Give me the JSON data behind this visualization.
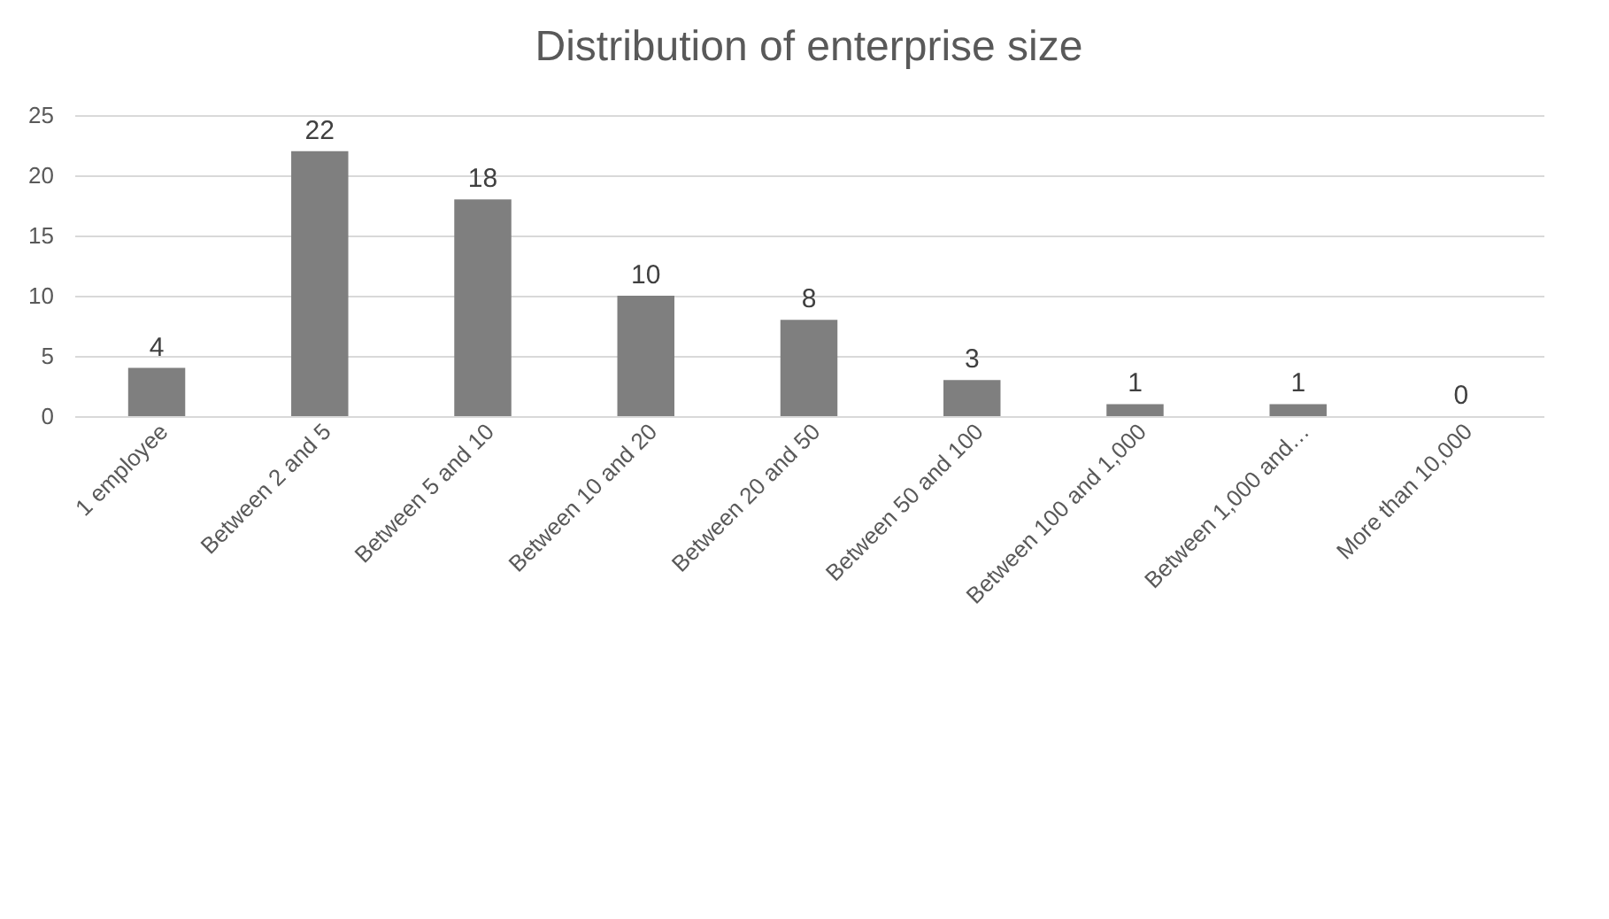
{
  "chart_data": {
    "type": "bar",
    "title": "Distribution of enterprise size",
    "categories": [
      "1 employee",
      "Between 2 and 5",
      "Between 5 and 10",
      "Between 10 and 20",
      "Between 20 and 50",
      "Between 50 and 100",
      "Between 100 and 1,000",
      "Between 1,000 and…",
      "More than 10,000"
    ],
    "values": [
      4,
      22,
      18,
      10,
      8,
      3,
      1,
      1,
      0
    ],
    "color": "#7f7f7f",
    "ylim": [
      0,
      25
    ],
    "yticks": [
      0,
      5,
      10,
      15,
      20,
      25
    ],
    "grid": "y",
    "data_labels": true
  }
}
